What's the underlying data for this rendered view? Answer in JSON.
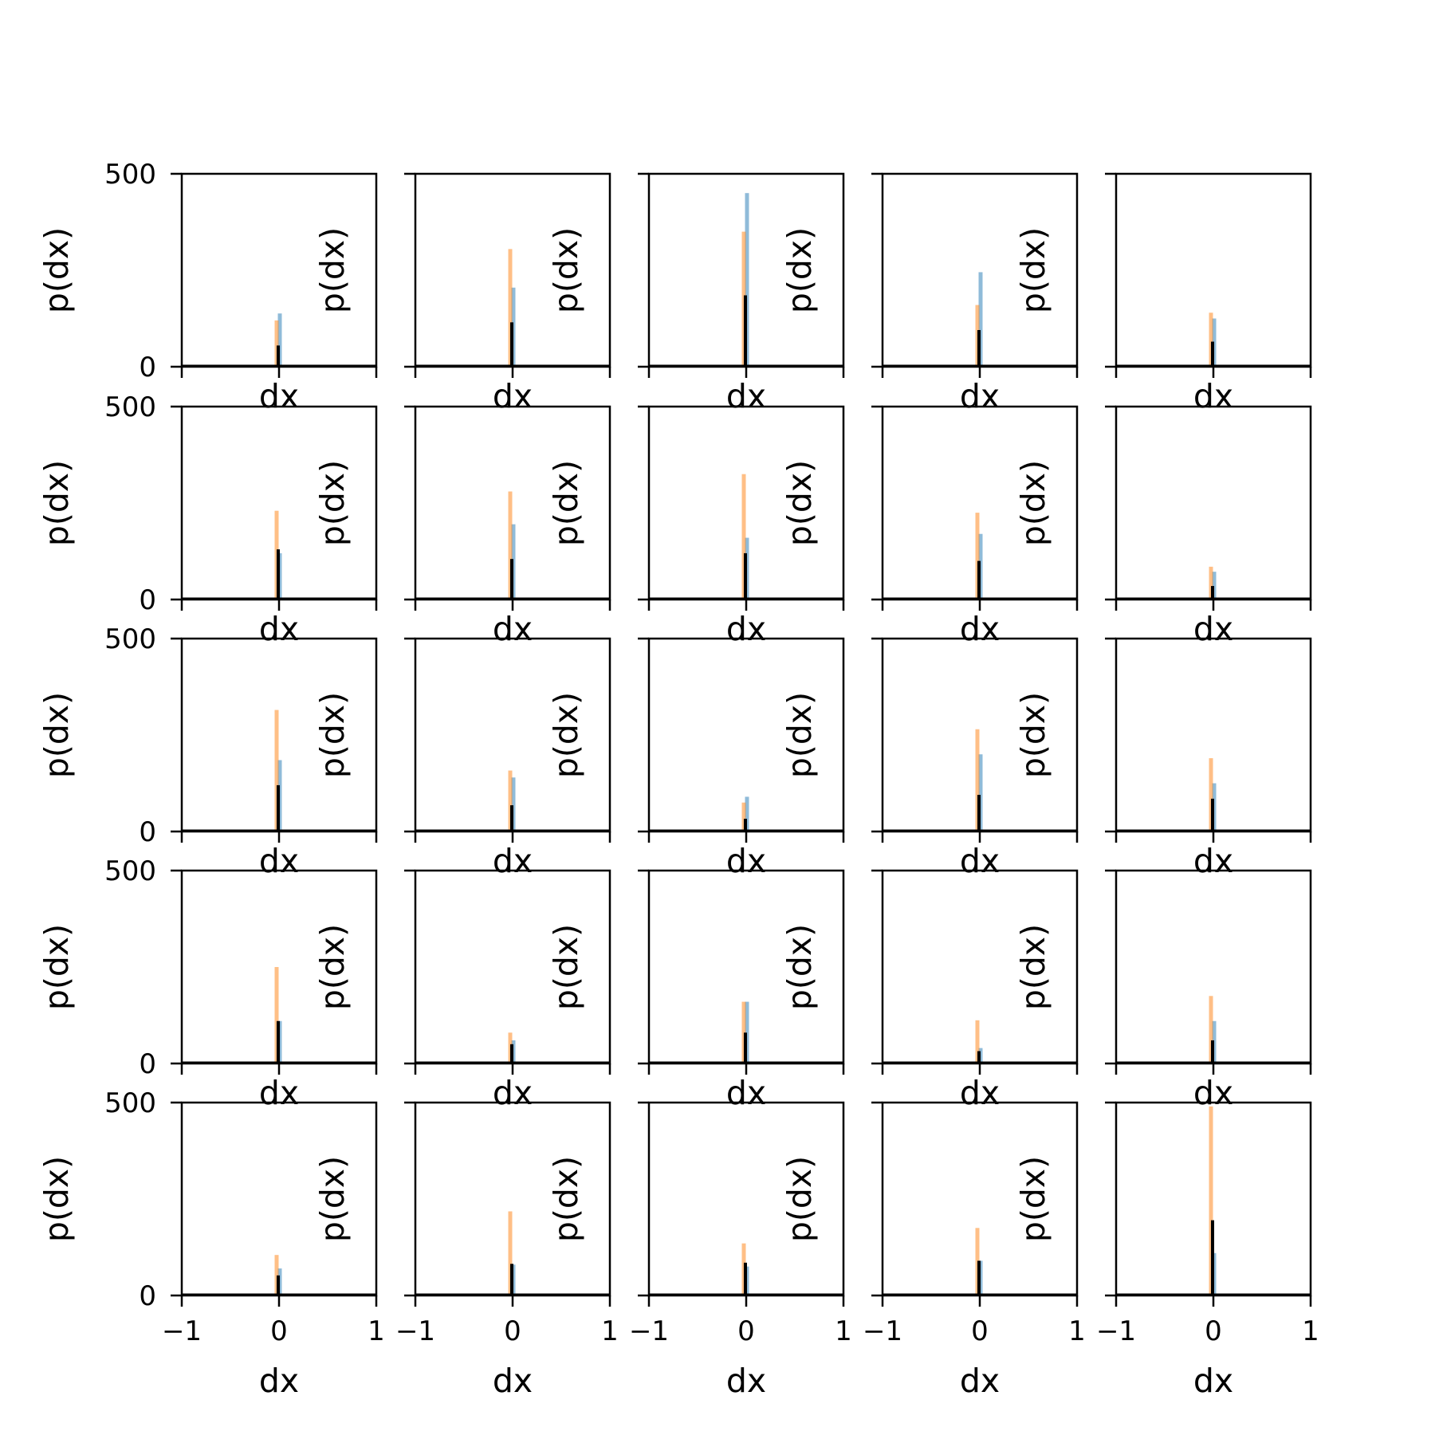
{
  "chart_data": {
    "type": "bar",
    "layout": "5x5 grid of histograms",
    "xlabel": "dx",
    "ylabel": "p(dx)",
    "xlim": [
      -1,
      1
    ],
    "ylim": [
      0,
      500
    ],
    "xticks": [
      -1,
      0,
      1
    ],
    "xtick_labels": [
      "−1",
      "0",
      "1"
    ],
    "yticks": [
      0,
      500
    ],
    "ytick_labels": [
      "0",
      "500"
    ],
    "grid": false,
    "series_colors": {
      "blue": "#1f77b4",
      "orange": "#ff7f0e",
      "black": "#000000"
    },
    "panels": [
      {
        "row": 1,
        "col": 1,
        "blue": 138,
        "orange": 120,
        "black": 55
      },
      {
        "row": 1,
        "col": 2,
        "blue": 205,
        "orange": 305,
        "black": 115
      },
      {
        "row": 1,
        "col": 3,
        "blue": 450,
        "orange": 350,
        "black": 185
      },
      {
        "row": 1,
        "col": 4,
        "blue": 245,
        "orange": 160,
        "black": 95
      },
      {
        "row": 1,
        "col": 5,
        "blue": 125,
        "orange": 140,
        "black": 65
      },
      {
        "row": 2,
        "col": 1,
        "blue": 120,
        "orange": 230,
        "black": 130
      },
      {
        "row": 2,
        "col": 2,
        "blue": 195,
        "orange": 280,
        "black": 105
      },
      {
        "row": 2,
        "col": 3,
        "blue": 160,
        "orange": 325,
        "black": 120
      },
      {
        "row": 2,
        "col": 4,
        "blue": 170,
        "orange": 225,
        "black": 100
      },
      {
        "row": 2,
        "col": 5,
        "blue": 72,
        "orange": 85,
        "black": 35
      },
      {
        "row": 3,
        "col": 1,
        "blue": 185,
        "orange": 315,
        "black": 120
      },
      {
        "row": 3,
        "col": 2,
        "blue": 140,
        "orange": 158,
        "black": 68
      },
      {
        "row": 3,
        "col": 3,
        "blue": 90,
        "orange": 75,
        "black": 33
      },
      {
        "row": 3,
        "col": 4,
        "blue": 200,
        "orange": 265,
        "black": 95
      },
      {
        "row": 3,
        "col": 5,
        "blue": 125,
        "orange": 190,
        "black": 85
      },
      {
        "row": 4,
        "col": 1,
        "blue": 110,
        "orange": 250,
        "black": 110
      },
      {
        "row": 4,
        "col": 2,
        "blue": 60,
        "orange": 80,
        "black": 50
      },
      {
        "row": 4,
        "col": 3,
        "blue": 160,
        "orange": 160,
        "black": 80
      },
      {
        "row": 4,
        "col": 4,
        "blue": 40,
        "orange": 112,
        "black": 32
      },
      {
        "row": 4,
        "col": 5,
        "blue": 110,
        "orange": 175,
        "black": 60
      },
      {
        "row": 5,
        "col": 1,
        "blue": 70,
        "orange": 105,
        "black": 52
      },
      {
        "row": 5,
        "col": 2,
        "blue": 80,
        "orange": 218,
        "black": 82
      },
      {
        "row": 5,
        "col": 3,
        "blue": 75,
        "orange": 135,
        "black": 85
      },
      {
        "row": 5,
        "col": 4,
        "blue": 90,
        "orange": 175,
        "black": 90
      },
      {
        "row": 5,
        "col": 5,
        "blue": 110,
        "orange": 490,
        "black": 195
      }
    ]
  }
}
